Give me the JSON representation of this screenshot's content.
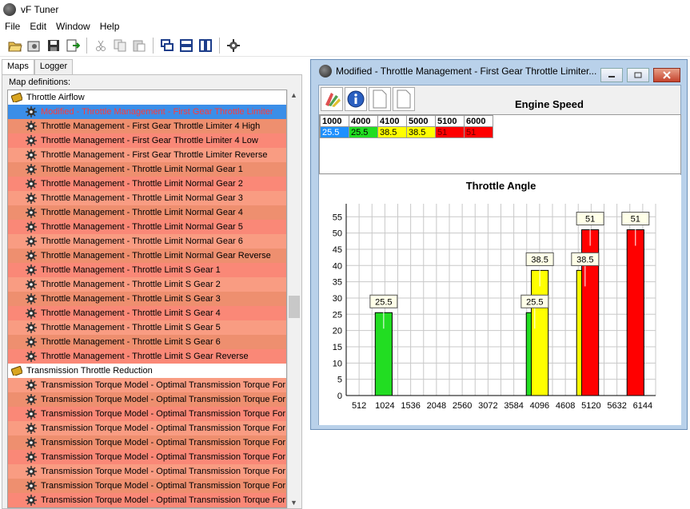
{
  "app": {
    "title": "vF Tuner"
  },
  "menu": [
    "File",
    "Edit",
    "Window",
    "Help"
  ],
  "tabs": [
    "Maps",
    "Logger"
  ],
  "panel": {
    "group_label": "Map definitions:"
  },
  "tree": [
    {
      "type": "cat",
      "label": "Throttle Airflow"
    },
    {
      "type": "item",
      "label": "Modified - Throttle Management - First Gear Throttle Limiter",
      "selected": true
    },
    {
      "type": "item",
      "label": "Throttle Management - First Gear Throttle Limiter 4 High"
    },
    {
      "type": "item",
      "label": "Throttle Management - First Gear Throttle Limiter 4 Low"
    },
    {
      "type": "item",
      "label": "Throttle Management - First Gear Throttle Limiter Reverse"
    },
    {
      "type": "item",
      "label": "Throttle Management - Throttle Limit Normal Gear 1"
    },
    {
      "type": "item",
      "label": "Throttle Management - Throttle Limit Normal Gear 2"
    },
    {
      "type": "item",
      "label": "Throttle Management - Throttle Limit Normal Gear 3"
    },
    {
      "type": "item",
      "label": "Throttle Management - Throttle Limit Normal Gear 4"
    },
    {
      "type": "item",
      "label": "Throttle Management - Throttle Limit Normal Gear 5"
    },
    {
      "type": "item",
      "label": "Throttle Management - Throttle Limit Normal Gear 6"
    },
    {
      "type": "item",
      "label": "Throttle Management - Throttle Limit Normal Gear Reverse"
    },
    {
      "type": "item",
      "label": "Throttle Management - Throttle Limit S Gear 1"
    },
    {
      "type": "item",
      "label": "Throttle Management - Throttle Limit S Gear 2"
    },
    {
      "type": "item",
      "label": "Throttle Management - Throttle Limit S Gear 3"
    },
    {
      "type": "item",
      "label": "Throttle Management - Throttle Limit S Gear 4"
    },
    {
      "type": "item",
      "label": "Throttle Management - Throttle Limit S Gear 5"
    },
    {
      "type": "item",
      "label": "Throttle Management - Throttle Limit S Gear 6"
    },
    {
      "type": "item",
      "label": "Throttle Management - Throttle Limit S Gear Reverse"
    },
    {
      "type": "cat",
      "label": "Transmission Throttle Reduction"
    },
    {
      "type": "item",
      "label": "Transmission Torque Model - Optimal Transmission Torque For"
    },
    {
      "type": "item",
      "label": "Transmission Torque Model - Optimal Transmission Torque For"
    },
    {
      "type": "item",
      "label": "Transmission Torque Model - Optimal Transmission Torque For"
    },
    {
      "type": "item",
      "label": "Transmission Torque Model - Optimal Transmission Torque For"
    },
    {
      "type": "item",
      "label": "Transmission Torque Model - Optimal Transmission Torque For"
    },
    {
      "type": "item",
      "label": "Transmission Torque Model - Optimal Transmission Torque For"
    },
    {
      "type": "item",
      "label": "Transmission Torque Model - Optimal Transmission Torque For"
    },
    {
      "type": "item",
      "label": "Transmission Torque Model - Optimal Transmission Torque For"
    },
    {
      "type": "item",
      "label": "Transmission Torque Model - Optimal Transmission Torque For"
    }
  ],
  "child_window": {
    "title": "Modified - Throttle Management - First Gear Throttle Limiter..."
  },
  "grid": {
    "x_title": "Engine Speed",
    "headers": [
      "1000",
      "4000",
      "4100",
      "5000",
      "5100",
      "6000"
    ],
    "values": [
      "25.5",
      "25.5",
      "38.5",
      "38.5",
      "51",
      "51"
    ],
    "cell_colors": [
      "#1e90ff",
      "#22dd22",
      "#ffff00",
      "#ffff00",
      "#ff0000",
      "#ff0000"
    ]
  },
  "chart_data": {
    "type": "bar",
    "title": "Throttle Angle",
    "x": [
      1000,
      4000,
      4100,
      5000,
      5100,
      6000
    ],
    "values": [
      25.5,
      25.5,
      38.5,
      38.5,
      51,
      51
    ],
    "colors": [
      "#22dd22",
      "#22dd22",
      "#ffff00",
      "#ffff00",
      "#ff0000",
      "#ff0000"
    ],
    "data_labels": [
      "25.5",
      "25.5",
      "38.5",
      "38.5",
      "51",
      "51"
    ],
    "x_ticks": [
      512,
      1024,
      1536,
      2048,
      2560,
      3072,
      3584,
      4096,
      4608,
      5120,
      5632,
      6144
    ],
    "y_ticks": [
      0,
      5,
      10,
      15,
      20,
      25,
      30,
      35,
      40,
      45,
      50,
      55
    ],
    "xlim": [
      256,
      6400
    ],
    "ylim": [
      0,
      59
    ],
    "grid": true
  }
}
